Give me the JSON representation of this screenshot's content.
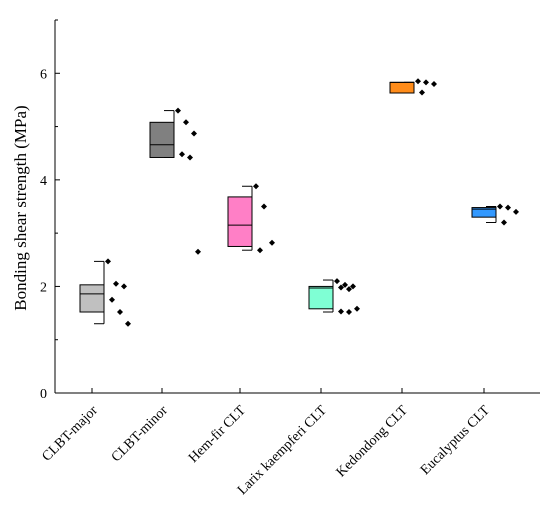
{
  "chart_data": {
    "type": "box",
    "title": "",
    "xlabel": "",
    "ylabel": "Bonding shear strength (MPa)",
    "ylim": [
      0,
      7
    ],
    "yticks": [
      0,
      2,
      4,
      6
    ],
    "grid": false,
    "legend": "none",
    "categories": [
      "CLBT-major",
      "CLBT-minor",
      "Hem-fir CLT",
      "Larix kaempferi CLT",
      "Kedondong CLT",
      "Eucalyptus CLT"
    ],
    "boxes": [
      {
        "category": "CLBT-major",
        "color": "#c0c0c0",
        "whisker_low": 1.3,
        "q1": 1.52,
        "median": 1.86,
        "q3": 2.03,
        "whisker_high": 2.47,
        "points": [
          2.47,
          2.05,
          2.0,
          1.75,
          1.52,
          1.3
        ]
      },
      {
        "category": "CLBT-minor",
        "color": "#808080",
        "whisker_low": 4.42,
        "q1": 4.42,
        "median": 4.66,
        "q3": 5.08,
        "whisker_high": 5.3,
        "points": [
          5.3,
          5.08,
          4.87,
          4.48,
          4.42,
          2.65
        ]
      },
      {
        "category": "Hem-fir CLT",
        "color": "#ff7fc6",
        "whisker_low": 2.68,
        "q1": 2.75,
        "median": 3.15,
        "q3": 3.68,
        "whisker_high": 3.88,
        "points": [
          3.88,
          3.5,
          2.82,
          2.68
        ]
      },
      {
        "category": "Larix kaempferi CLT",
        "color": "#7fffd4",
        "whisker_low": 1.52,
        "q1": 1.58,
        "median": 1.97,
        "q3": 2.0,
        "whisker_high": 2.12,
        "points": [
          2.1,
          2.03,
          2.0,
          1.98,
          1.95,
          1.58,
          1.53,
          1.52
        ]
      },
      {
        "category": "Kedondong CLT",
        "color": "#ff8c1a",
        "whisker_low": 5.63,
        "q1": 5.63,
        "median": 5.83,
        "q3": 5.83,
        "whisker_high": 5.83,
        "points": [
          5.85,
          5.83,
          5.8,
          5.64
        ]
      },
      {
        "category": "Eucalyptus CLT",
        "color": "#3399ff",
        "whisker_low": 3.2,
        "q1": 3.3,
        "median": 3.45,
        "q3": 3.48,
        "whisker_high": 3.5,
        "points": [
          3.5,
          3.48,
          3.4,
          3.2
        ]
      }
    ]
  }
}
